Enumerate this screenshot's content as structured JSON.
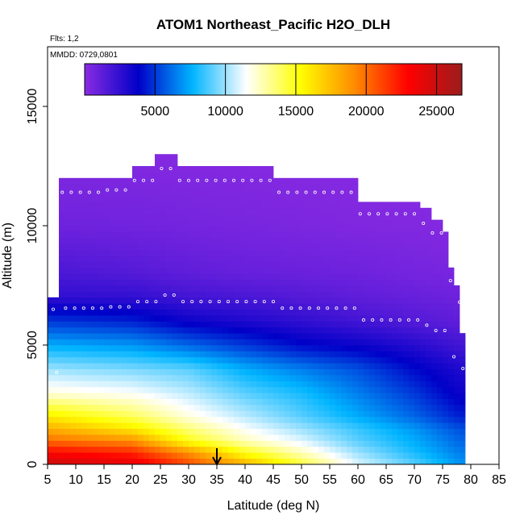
{
  "chart_data": {
    "type": "heatmap",
    "title": "ATOM1 Northeast_Pacific H2O_DLH",
    "flights_label": "Flts: 1,2",
    "dates_label": "MMDD: 0729,0801",
    "xlabel": "Latitude (deg N)",
    "ylabel": "Altitude (m)",
    "xlim": [
      5,
      85
    ],
    "ylim": [
      0,
      17500
    ],
    "x_ticks": [
      5,
      10,
      15,
      20,
      25,
      30,
      35,
      40,
      45,
      50,
      55,
      60,
      65,
      70,
      75,
      80,
      85
    ],
    "y_ticks": [
      0,
      5000,
      10000,
      15000
    ],
    "colorbar": {
      "range": [
        0,
        26800
      ],
      "ticks": [
        5000,
        10000,
        15000,
        20000,
        25000
      ],
      "placement": "top",
      "colors": [
        "#8a2be2",
        "#0000c8",
        "#00b4ff",
        "#ffffff",
        "#ffff00",
        "#ff8c00",
        "#ff0000",
        "#9b1c1c"
      ]
    },
    "marker_latitude": 35,
    "profile_top_altitude": [
      [
        5,
        6800
      ],
      [
        6,
        7000
      ],
      [
        7,
        11900
      ],
      [
        10,
        11900
      ],
      [
        12,
        11900
      ],
      [
        14,
        12000
      ],
      [
        20,
        12400
      ],
      [
        24,
        12900
      ],
      [
        27,
        12900
      ],
      [
        28,
        12400
      ],
      [
        40,
        12400
      ],
      [
        45,
        11900
      ],
      [
        56,
        11900
      ],
      [
        60,
        11000
      ],
      [
        69,
        11000
      ],
      [
        71,
        10600
      ],
      [
        73,
        10200
      ],
      [
        75,
        9600
      ],
      [
        76,
        8200
      ],
      [
        77,
        7300
      ],
      [
        78,
        5500
      ],
      [
        79,
        5500
      ]
    ],
    "altitude_profile_h2o_ppmv": [
      {
        "altitude": 0,
        "values": [
          [
            5,
            25000
          ],
          [
            20,
            24000
          ],
          [
            30,
            21000
          ],
          [
            40,
            18000
          ],
          [
            50,
            14500
          ],
          [
            60,
            11000
          ],
          [
            70,
            9000
          ],
          [
            78,
            7000
          ]
        ]
      },
      {
        "altitude": 500,
        "values": [
          [
            5,
            23000
          ],
          [
            20,
            22000
          ],
          [
            30,
            19000
          ],
          [
            40,
            15000
          ],
          [
            50,
            12500
          ],
          [
            60,
            10000
          ],
          [
            70,
            8000
          ],
          [
            78,
            6500
          ]
        ]
      },
      {
        "altitude": 1000,
        "values": [
          [
            5,
            20000
          ],
          [
            20,
            19000
          ],
          [
            30,
            15000
          ],
          [
            40,
            12500
          ],
          [
            50,
            11000
          ],
          [
            60,
            9000
          ],
          [
            70,
            7500
          ],
          [
            78,
            6000
          ]
        ]
      },
      {
        "altitude": 1500,
        "values": [
          [
            5,
            18000
          ],
          [
            20,
            16000
          ],
          [
            30,
            13500
          ],
          [
            40,
            11500
          ],
          [
            50,
            10000
          ],
          [
            60,
            8500
          ],
          [
            70,
            7000
          ],
          [
            78,
            5500
          ]
        ]
      },
      {
        "altitude": 2000,
        "values": [
          [
            5,
            16000
          ],
          [
            20,
            14000
          ],
          [
            30,
            12000
          ],
          [
            40,
            10500
          ],
          [
            50,
            9000
          ],
          [
            60,
            7500
          ],
          [
            70,
            6000
          ],
          [
            78,
            4500
          ]
        ]
      },
      {
        "altitude": 3000,
        "values": [
          [
            5,
            12000
          ],
          [
            20,
            11500
          ],
          [
            30,
            10500
          ],
          [
            40,
            9000
          ],
          [
            50,
            8000
          ],
          [
            60,
            6500
          ],
          [
            70,
            5000
          ],
          [
            78,
            3500
          ]
        ]
      },
      {
        "altitude": 4000,
        "values": [
          [
            5,
            10000
          ],
          [
            20,
            9500
          ],
          [
            30,
            9000
          ],
          [
            40,
            7500
          ],
          [
            50,
            6500
          ],
          [
            60,
            5500
          ],
          [
            70,
            4000
          ],
          [
            78,
            3000
          ]
        ]
      },
      {
        "altitude": 5000,
        "values": [
          [
            5,
            7500
          ],
          [
            20,
            7000
          ],
          [
            30,
            6000
          ],
          [
            40,
            5000
          ],
          [
            50,
            4000
          ],
          [
            60,
            3500
          ],
          [
            70,
            2800
          ],
          [
            78,
            2000
          ]
        ]
      },
      {
        "altitude": 6000,
        "values": [
          [
            5,
            5000
          ],
          [
            20,
            4500
          ],
          [
            30,
            3500
          ],
          [
            40,
            3000
          ],
          [
            50,
            2500
          ],
          [
            60,
            2000
          ],
          [
            70,
            1500
          ],
          [
            78,
            1200
          ]
        ]
      },
      {
        "altitude": 7000,
        "values": [
          [
            5,
            2500
          ],
          [
            20,
            2500
          ],
          [
            30,
            2000
          ],
          [
            40,
            1800
          ],
          [
            50,
            1500
          ],
          [
            60,
            1200
          ],
          [
            70,
            1000
          ],
          [
            78,
            800
          ]
        ]
      },
      {
        "altitude": 8000,
        "values": [
          [
            5,
            1800
          ],
          [
            20,
            1500
          ],
          [
            30,
            1200
          ],
          [
            40,
            1000
          ],
          [
            50,
            900
          ],
          [
            60,
            800
          ],
          [
            70,
            600
          ],
          [
            78,
            500
          ]
        ]
      },
      {
        "altitude": 10000,
        "values": [
          [
            5,
            800
          ],
          [
            20,
            700
          ],
          [
            30,
            600
          ],
          [
            40,
            500
          ],
          [
            50,
            400
          ],
          [
            60,
            300
          ],
          [
            70,
            250
          ],
          [
            78,
            200
          ]
        ]
      },
      {
        "altitude": 13000,
        "values": [
          [
            5,
            200
          ],
          [
            20,
            200
          ],
          [
            30,
            150
          ],
          [
            40,
            150
          ],
          [
            50,
            100
          ],
          [
            60,
            100
          ],
          [
            70,
            100
          ],
          [
            78,
            100
          ]
        ]
      }
    ]
  }
}
